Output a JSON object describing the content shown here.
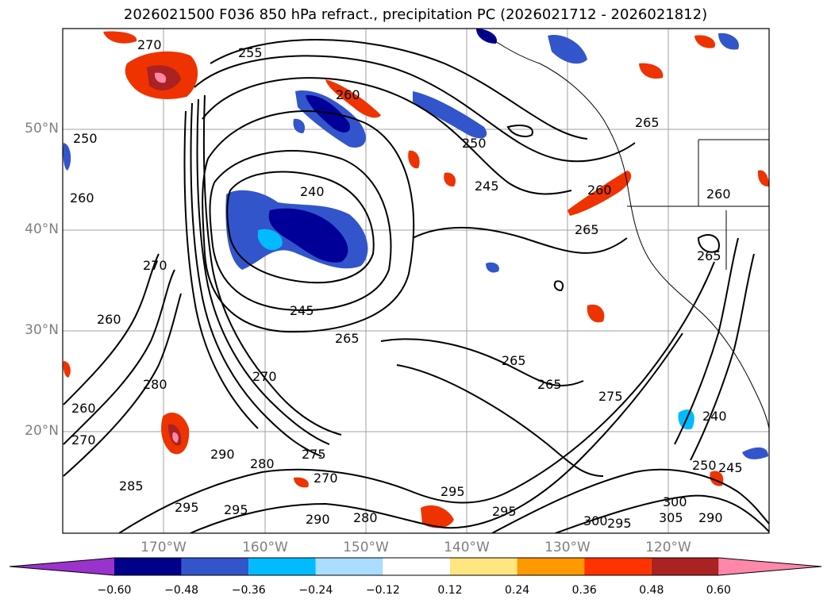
{
  "title": "2026021500 F036 850 hPa refract., precipitation PC (2026021712 - 2026021812)",
  "map": {
    "lat_labels": [
      "50°N",
      "40°N",
      "30°N",
      "20°N"
    ],
    "lon_labels": [
      "170°W",
      "160°W",
      "150°W",
      "140°W",
      "130°W",
      "120°W"
    ],
    "contour_labels": [
      "270",
      "255",
      "260",
      "250",
      "260",
      "240",
      "250",
      "245",
      "265",
      "260",
      "270",
      "265",
      "260",
      "245",
      "265",
      "265",
      "280",
      "270",
      "265",
      "260",
      "275",
      "270",
      "290",
      "280",
      "275",
      "270",
      "285",
      "295",
      "295",
      "290",
      "280",
      "295",
      "295",
      "300",
      "295",
      "305",
      "300",
      "290",
      "250",
      "245",
      "240",
      "265",
      "260"
    ],
    "colors": {
      "contour": "#000000",
      "gridline": "#a0a0a0",
      "land_border": "#000000",
      "neg_dark": "#000099",
      "neg_mid": "#3355cc",
      "neg_light": "#00bbff",
      "pos_mid": "#ff9900",
      "pos_high": "#ee3300",
      "pos_very_high": "#aa2222",
      "pos_max": "#ff88aa"
    }
  },
  "colorbar": {
    "ticks": [
      "−0.60",
      "−0.48",
      "−0.36",
      "−0.24",
      "−0.12",
      "0.12",
      "0.24",
      "0.36",
      "0.48",
      "0.60"
    ],
    "colors": [
      "#9933cc",
      "#000088",
      "#3355cc",
      "#00bbff",
      "#aaddff",
      "#ffffff",
      "#ffe680",
      "#ff9900",
      "#ff3300",
      "#aa2222",
      "#ff88aa"
    ]
  }
}
